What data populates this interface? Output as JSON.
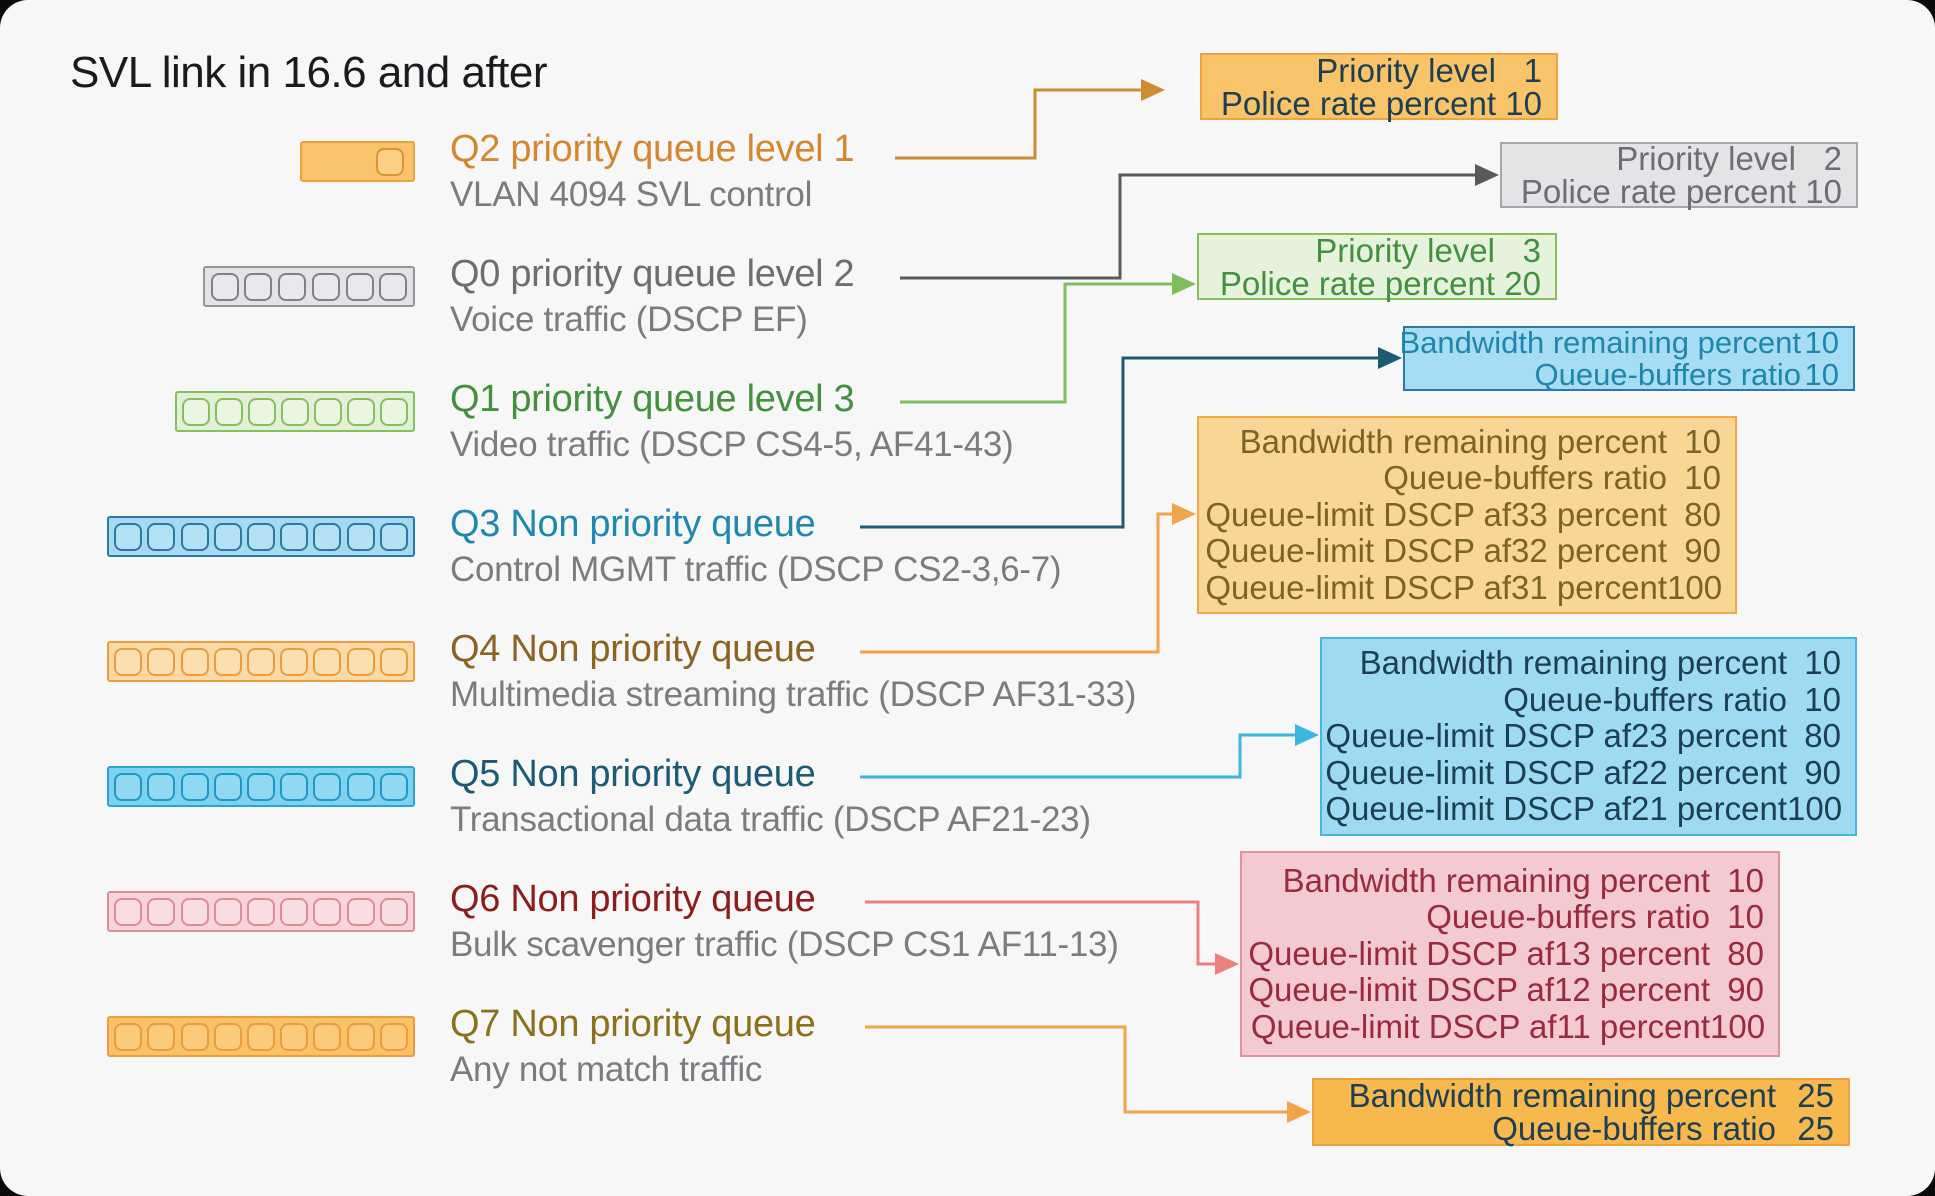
{
  "title": "SVL link in 16.6 and after",
  "page": {
    "background": "#f7f7f8",
    "corner_background": "#0b0b0d"
  },
  "queues": [
    {
      "name": "Q2",
      "title": "Q2 priority queue level 1",
      "subtitle": "VLAN 4094 SVL control",
      "title_color": "#d4872f",
      "arrow_color": "#cf8b33",
      "icon": {
        "cells": 1,
        "bg": "#f9c469",
        "border": "#e8a33d",
        "cell_bg": "#fbcf85",
        "cell_border": "#db9434"
      }
    },
    {
      "name": "Q0",
      "title": "Q0 priority queue level 2",
      "subtitle": "Voice traffic (DSCP EF)",
      "title_color": "#6d6e71",
      "arrow_color": "#58595b",
      "icon": {
        "cells": 6,
        "bg": "#e3e3e5",
        "border": "#939598",
        "cell_bg": "#e9e9eb",
        "cell_border": "#808184"
      }
    },
    {
      "name": "Q1",
      "title": "Q1 priority queue level 3",
      "subtitle": "Video traffic (DSCP CS4-5, AF41-43)",
      "title_color": "#43903f",
      "arrow_color": "#7dbf5a",
      "icon": {
        "cells": 7,
        "bg": "#e2f0d7",
        "border": "#85c05c",
        "cell_bg": "#eaf5e2",
        "cell_border": "#85c05c"
      }
    },
    {
      "name": "Q3",
      "title": "Q3 Non priority queue",
      "subtitle": "Control MGMT traffic (DSCP CS2-3,6-7)",
      "title_color": "#2088ae",
      "arrow_color": "#1d5a73",
      "icon": {
        "cells": 9,
        "bg": "#a6daf2",
        "border": "#2a7aa1",
        "cell_bg": "#b5e1f5",
        "cell_border": "#2a7aa1"
      }
    },
    {
      "name": "Q4",
      "title": "Q4 Non priority queue",
      "subtitle": "Multimedia streaming traffic (DSCP AF31-33)",
      "title_color": "#8a6420",
      "arrow_color": "#f2a44b",
      "icon": {
        "cells": 9,
        "bg": "#fbd9a4",
        "border": "#eb9c3f",
        "cell_bg": "#fcdfb1",
        "cell_border": "#eb9c3f"
      }
    },
    {
      "name": "Q5",
      "title": "Q5 Non priority queue",
      "subtitle": "Transactional data traffic (DSCP AF21-23)",
      "title_color": "#1d5a73",
      "arrow_color": "#3cb6de",
      "icon": {
        "cells": 9,
        "bg": "#7fd2ef",
        "border": "#29a5d3",
        "cell_bg": "#90d9f1",
        "cell_border": "#1e99c7"
      }
    },
    {
      "name": "Q6",
      "title": "Q6 Non priority queue",
      "subtitle": "Bulk scavenger traffic (DSCP CS1 AF11-13)",
      "title_color": "#8c1d1d",
      "arrow_color": "#ea8080",
      "icon": {
        "cells": 9,
        "bg": "#f6d6d9",
        "border": "#de8d94",
        "cell_bg": "#f8dee0",
        "cell_border": "#de8d94"
      }
    },
    {
      "name": "Q7",
      "title": "Q7 Non priority queue",
      "subtitle": "Any not match traffic",
      "title_color": "#8c711c",
      "arrow_color": "#f2a44b",
      "icon": {
        "cells": 9,
        "bg": "#fac167",
        "border": "#eb9c3f",
        "cell_bg": "#fbca7b",
        "cell_border": "#eb9c3f"
      }
    }
  ],
  "info_boxes": [
    {
      "id": "q2-policy",
      "bg": "#f9c469",
      "border": "#eda43e",
      "text_color": "#1c3f54",
      "lines": [
        {
          "label": "Priority level",
          "value": "1"
        },
        {
          "label": "Police rate percent",
          "value": "10"
        }
      ]
    },
    {
      "id": "q0-policy",
      "bg": "#e4e4e6",
      "border": "#a6a7aa",
      "text_color": "#6d6e71",
      "lines": [
        {
          "label": "Priority level",
          "value": "2"
        },
        {
          "label": "Police rate percent",
          "value": "10"
        }
      ]
    },
    {
      "id": "q1-policy",
      "bg": "#e6f2dc",
      "border": "#85c05c",
      "text_color": "#43903f",
      "lines": [
        {
          "label": "Priority level",
          "value": "3"
        },
        {
          "label": "Police rate percent",
          "value": "20"
        }
      ]
    },
    {
      "id": "q3-policy",
      "bg": "#a6ddf4",
      "border": "#2a7aa1",
      "text_color": "#1f86ac",
      "lines": [
        {
          "label": "Bandwidth remaining percent",
          "value": "10"
        },
        {
          "label": "Queue-buffers ratio",
          "value": "10"
        }
      ]
    },
    {
      "id": "q4-policy",
      "bg": "#fad695",
      "border": "#eda94a",
      "text_color": "#7d6327",
      "lines": [
        {
          "label": "Bandwidth remaining percent",
          "value": "10"
        },
        {
          "label": "Queue-buffers ratio",
          "value": "10"
        },
        {
          "label": "Queue-limit DSCP af33 percent",
          "value": "80"
        },
        {
          "label": "Queue-limit DSCP af32 percent",
          "value": "90"
        },
        {
          "label": "Queue-limit DSCP af31 percent",
          "value": "100"
        }
      ]
    },
    {
      "id": "q5-policy",
      "bg": "#9fdaf3",
      "border": "#45b7e2",
      "text_color": "#1c3f54",
      "lines": [
        {
          "label": "Bandwidth remaining percent",
          "value": "10"
        },
        {
          "label": "Queue-buffers ratio",
          "value": "10"
        },
        {
          "label": "Queue-limit DSCP af23 percent",
          "value": "80"
        },
        {
          "label": "Queue-limit DSCP af22 percent",
          "value": "90"
        },
        {
          "label": "Queue-limit DSCP af21 percent",
          "value": "100"
        }
      ]
    },
    {
      "id": "q6-policy",
      "bg": "#f3cacf",
      "border": "#e09199",
      "text_color": "#9a2b3d",
      "lines": [
        {
          "label": "Bandwidth remaining percent",
          "value": "10"
        },
        {
          "label": "Queue-buffers ratio",
          "value": "10"
        },
        {
          "label": "Queue-limit DSCP af13 percent",
          "value": "80"
        },
        {
          "label": "Queue-limit DSCP af12 percent",
          "value": "90"
        },
        {
          "label": "Queue-limit DSCP af11 percent",
          "value": "100"
        }
      ]
    },
    {
      "id": "q7-policy",
      "bg": "#f7b84e",
      "border": "#eda43e",
      "text_color": "#1c3f54",
      "lines": [
        {
          "label": "Bandwidth remaining percent",
          "value": "25"
        },
        {
          "label": "Queue-buffers ratio",
          "value": "25"
        }
      ]
    }
  ]
}
